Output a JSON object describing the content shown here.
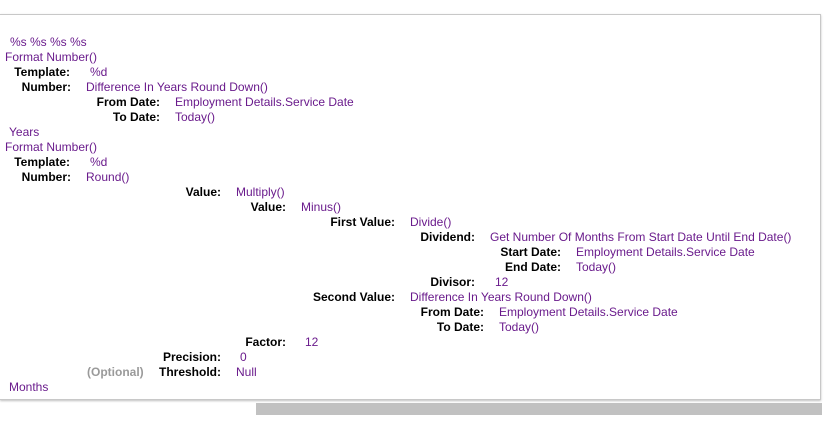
{
  "expression": {
    "header": "%s %s %s %s",
    "years_block": {
      "fn": "Format Number()",
      "template_label": "Template:",
      "template_value": "%d",
      "number_label": "Number:",
      "number_value": "Difference In Years Round Down()",
      "from_label": "From Date:",
      "from_value": "Employment Details.Service Date",
      "to_label": "To Date:",
      "to_value": "Today()"
    },
    "years_text": "Years",
    "months_block": {
      "fn": "Format Number()",
      "template_label": "Template:",
      "template_value": "%d",
      "number_label": "Number:",
      "number_value": "Round()",
      "value_label": "Value:",
      "value_value": "Multiply()",
      "inner_value_label": "Value:",
      "inner_value_value": "Minus()",
      "first_value_label": "First Value:",
      "first_value_value": "Divide()",
      "dividend_label": "Dividend:",
      "dividend_value": "Get Number Of Months From Start Date Until End Date()",
      "start_label": "Start Date:",
      "start_value": "Employment Details.Service Date",
      "end_label": "End Date:",
      "end_value": "Today()",
      "divisor_label": "Divisor:",
      "divisor_value": "12",
      "second_value_label": "Second Value:",
      "second_value_value": "Difference In Years Round Down()",
      "sv_from_label": "From Date:",
      "sv_from_value": "Employment Details.Service Date",
      "sv_to_label": "To Date:",
      "sv_to_value": "Today()",
      "factor_label": "Factor:",
      "factor_value": "12",
      "precision_label": "Precision:",
      "precision_value": "0",
      "optional_tag": "(Optional)",
      "threshold_label": "Threshold:",
      "threshold_value": "Null"
    },
    "months_text": "Months"
  },
  "colors": {
    "value": "#6a1b8c",
    "optional": "#9a9a9a",
    "scrollbar_thumb": "#c1c1c1"
  }
}
